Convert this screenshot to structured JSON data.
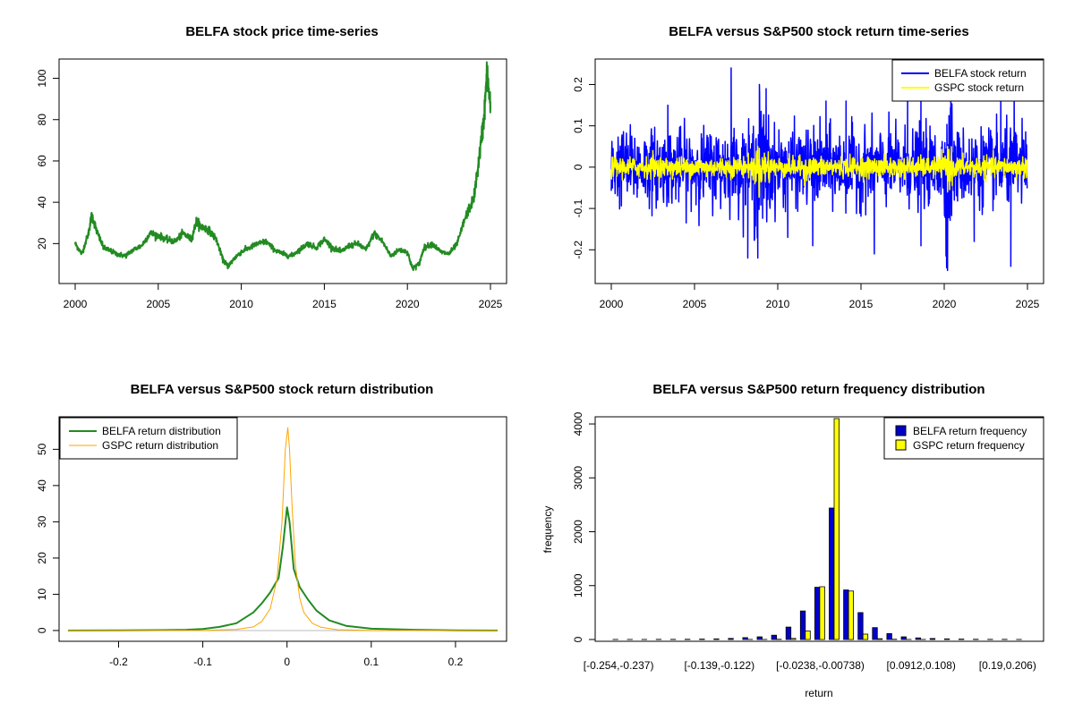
{
  "chart_data": [
    {
      "type": "line",
      "title": "BELFA stock price time-series",
      "xlabel": "",
      "ylabel": "",
      "xlim": [
        2000,
        2025
      ],
      "ylim": [
        5,
        105
      ],
      "x_ticks": [
        2000,
        2005,
        2010,
        2015,
        2020,
        2025
      ],
      "y_ticks": [
        20,
        40,
        60,
        80,
        100
      ],
      "series": [
        {
          "color": "#228B22",
          "x": [
            2000.0,
            2000.4,
            2000.8,
            2001.0,
            2001.3,
            2001.7,
            2002.0,
            2002.5,
            2003.0,
            2003.5,
            2004.0,
            2004.5,
            2005.0,
            2005.5,
            2006.0,
            2006.5,
            2007.0,
            2007.3,
            2007.6,
            2008.0,
            2008.5,
            2008.9,
            2009.2,
            2009.6,
            2010.0,
            2010.5,
            2011.0,
            2011.5,
            2012.0,
            2012.5,
            2013.0,
            2013.5,
            2014.0,
            2014.5,
            2015.0,
            2015.5,
            2016.0,
            2016.5,
            2017.0,
            2017.5,
            2018.0,
            2018.5,
            2019.0,
            2019.5,
            2020.0,
            2020.3,
            2020.7,
            2021.0,
            2021.5,
            2022.0,
            2022.5,
            2023.0,
            2023.5,
            2024.0,
            2024.3,
            2024.6,
            2024.8,
            2025.0
          ],
          "y": [
            20,
            15,
            25,
            34,
            26,
            18,
            17,
            15,
            14,
            17,
            19,
            25,
            24,
            22,
            21,
            25,
            22,
            31,
            28,
            27,
            22,
            12,
            9,
            13,
            16,
            18,
            20,
            21,
            17,
            15,
            14,
            17,
            20,
            18,
            22,
            18,
            16,
            19,
            20,
            17,
            25,
            21,
            14,
            17,
            16,
            8,
            10,
            18,
            20,
            16,
            15,
            20,
            33,
            42,
            60,
            80,
            103,
            85
          ]
        }
      ]
    },
    {
      "type": "line",
      "title": "BELFA versus S&P500 stock return time-series",
      "xlabel": "",
      "ylabel": "",
      "xlim": [
        2000,
        2025
      ],
      "ylim": [
        -0.26,
        0.24
      ],
      "x_ticks": [
        2000,
        2005,
        2010,
        2015,
        2020,
        2025
      ],
      "y_ticks": [
        -0.2,
        -0.1,
        0.0,
        0.1,
        0.2
      ],
      "legend_position": "top-right",
      "series": [
        {
          "name": "BELFA stock return",
          "color": "#0000FF",
          "spike_scale": 0.045,
          "spikes": [
            {
              "x": 2007.2,
              "y": 0.24
            },
            {
              "x": 2008.9,
              "y": 0.2
            },
            {
              "x": 2009.3,
              "y": 0.19
            },
            {
              "x": 2012.9,
              "y": 0.16
            },
            {
              "x": 2014.1,
              "y": 0.16
            },
            {
              "x": 2017.8,
              "y": 0.17
            },
            {
              "x": 2018.6,
              "y": 0.18
            },
            {
              "x": 2020.4,
              "y": 0.18
            },
            {
              "x": 2023.4,
              "y": 0.17
            },
            {
              "x": 2024.2,
              "y": 0.19
            },
            {
              "x": 2008.2,
              "y": -0.22
            },
            {
              "x": 2008.8,
              "y": -0.22
            },
            {
              "x": 2012.1,
              "y": -0.19
            },
            {
              "x": 2015.8,
              "y": -0.21
            },
            {
              "x": 2018.6,
              "y": -0.19
            },
            {
              "x": 2020.2,
              "y": -0.25
            },
            {
              "x": 2021.8,
              "y": -0.18
            },
            {
              "x": 2024.0,
              "y": -0.24
            },
            {
              "x": 2010.6,
              "y": -0.17
            },
            {
              "x": 2003.4,
              "y": 0.15
            }
          ]
        },
        {
          "name": "GSPC stock return",
          "color": "#FFFF00",
          "spike_scale": 0.012,
          "spikes": [
            {
              "x": 2008.8,
              "y": 0.05
            },
            {
              "x": 2008.9,
              "y": -0.07
            },
            {
              "x": 2020.2,
              "y": 0.05
            },
            {
              "x": 2020.2,
              "y": -0.06
            },
            {
              "x": 2002.5,
              "y": 0.04
            },
            {
              "x": 2011.6,
              "y": -0.045
            }
          ]
        }
      ]
    },
    {
      "type": "line",
      "title": "BELFA versus S&P500 stock return distribution",
      "xlabel": "",
      "ylabel": "",
      "xlim": [
        -0.26,
        0.25
      ],
      "ylim": [
        -1,
        57
      ],
      "x_ticks": [
        -0.2,
        -0.1,
        0.0,
        0.1,
        0.2
      ],
      "y_ticks": [
        0,
        10,
        20,
        30,
        40,
        50
      ],
      "legend_position": "top-left",
      "series": [
        {
          "name": "BELFA return distribution",
          "color": "#228B22",
          "x": [
            -0.26,
            -0.2,
            -0.15,
            -0.12,
            -0.1,
            -0.08,
            -0.06,
            -0.04,
            -0.03,
            -0.02,
            -0.01,
            -0.005,
            0.0,
            0.003,
            0.008,
            0.015,
            0.025,
            0.035,
            0.05,
            0.07,
            0.1,
            0.15,
            0.2,
            0.25
          ],
          "y": [
            0,
            0.05,
            0.1,
            0.2,
            0.4,
            1.0,
            2.0,
            5.0,
            7.5,
            10.5,
            14.5,
            23.0,
            34.0,
            30.0,
            17.0,
            12.0,
            8.5,
            5.5,
            2.8,
            1.3,
            0.5,
            0.2,
            0.05,
            0
          ]
        },
        {
          "name": "GSPC return distribution",
          "color": "#FFA500",
          "x": [
            -0.26,
            -0.1,
            -0.06,
            -0.04,
            -0.03,
            -0.02,
            -0.012,
            -0.006,
            -0.002,
            0.001,
            0.003,
            0.006,
            0.01,
            0.015,
            0.02,
            0.03,
            0.04,
            0.06,
            0.1,
            0.25
          ],
          "y": [
            0,
            0,
            0.3,
            1.0,
            2.5,
            6.0,
            14.0,
            30.0,
            50.0,
            56.0,
            50.0,
            34.0,
            18.0,
            9.0,
            5.0,
            2.0,
            0.9,
            0.2,
            0,
            0
          ]
        }
      ]
    },
    {
      "type": "bar",
      "title": "BELFA versus S&P500 return frequency distribution",
      "xlabel": "return",
      "ylabel": "frequency",
      "ylim": [
        0,
        4100
      ],
      "y_ticks": [
        0,
        1000,
        2000,
        3000,
        4000
      ],
      "legend_position": "top-right",
      "category_labels": [
        {
          "index": 0,
          "text": "[-0.254,-0.237)"
        },
        {
          "index": 7,
          "text": "[-0.139,-0.122)"
        },
        {
          "index": 14,
          "text": "[-0.0238,-0.00738)"
        },
        {
          "index": 21,
          "text": "[0.0912,0.108)"
        },
        {
          "index": 27,
          "text": "[0.19,0.206)"
        }
      ],
      "bin_count": 29,
      "series": [
        {
          "name": "BELFA return frequency",
          "color": "#0000CD",
          "values": [
            1,
            1,
            2,
            3,
            4,
            5,
            8,
            12,
            20,
            35,
            50,
            80,
            230,
            530,
            970,
            2440,
            920,
            500,
            220,
            110,
            50,
            30,
            18,
            12,
            8,
            5,
            4,
            3,
            2
          ]
        },
        {
          "name": "GSPC return frequency",
          "color": "#FFFF00",
          "values": [
            0,
            0,
            0,
            0,
            0,
            0,
            0,
            0,
            0,
            1,
            2,
            5,
            20,
            160,
            980,
            4100,
            900,
            100,
            15,
            5,
            2,
            1,
            0,
            0,
            0,
            0,
            0,
            0,
            0
          ]
        }
      ]
    }
  ]
}
